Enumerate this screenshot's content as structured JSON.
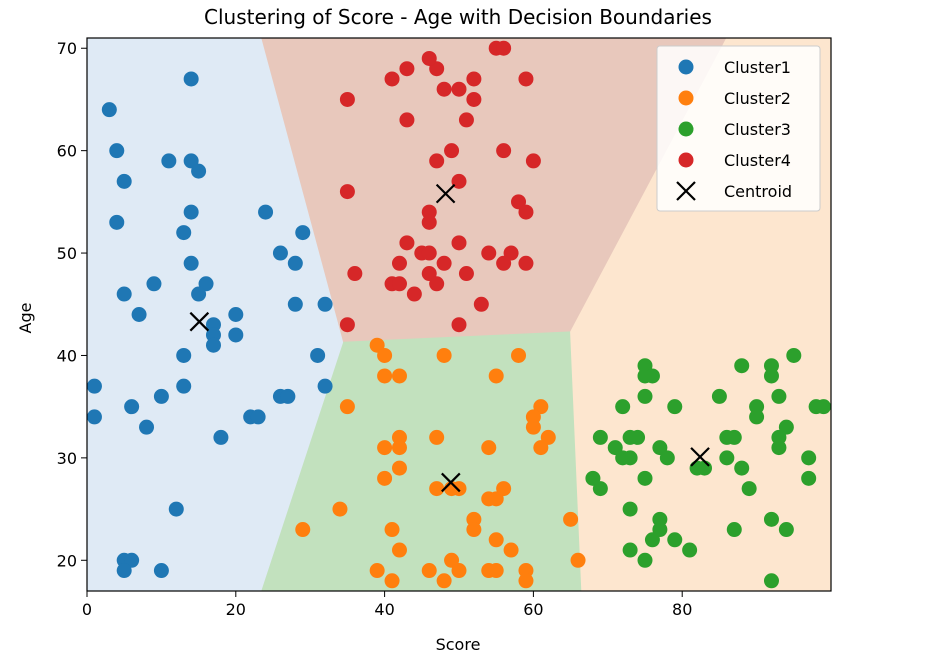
{
  "chart_data": {
    "type": "scatter",
    "title": "Clustering of Score - Age with Decision Boundaries",
    "xlabel": "Score",
    "ylabel": "Age",
    "xlim": [
      0,
      100
    ],
    "ylim": [
      17,
      71
    ],
    "xticks": [
      0,
      20,
      40,
      60,
      80
    ],
    "yticks": [
      20,
      30,
      40,
      50,
      60,
      70
    ],
    "grid": false,
    "legend_position": "top-right",
    "regions": [
      {
        "cluster": "Cluster1",
        "color": "#dfeaf5",
        "polygon": [
          [
            0,
            71
          ],
          [
            23.5,
            71
          ],
          [
            34.5,
            41.3
          ],
          [
            23.5,
            17
          ],
          [
            0,
            17
          ]
        ]
      },
      {
        "cluster": "Cluster4",
        "color": "#e8c8bc",
        "polygon": [
          [
            23.5,
            71
          ],
          [
            86,
            71
          ],
          [
            65,
            42.3
          ],
          [
            34.5,
            41.3
          ]
        ]
      },
      {
        "cluster": "Cluster2",
        "color": "#c2e1be",
        "polygon": [
          [
            34.5,
            41.3
          ],
          [
            65,
            42.3
          ],
          [
            66.5,
            17
          ],
          [
            23.5,
            17
          ]
        ]
      },
      {
        "cluster": "Cluster3",
        "color": "#fde6cf",
        "polygon": [
          [
            65,
            42.3
          ],
          [
            86,
            71
          ],
          [
            100,
            71
          ],
          [
            100,
            17
          ],
          [
            66.5,
            17
          ]
        ]
      }
    ],
    "series": [
      {
        "name": "Cluster1",
        "color": "#1f77b4",
        "points": [
          [
            14,
            67
          ],
          [
            3,
            64
          ],
          [
            4,
            60
          ],
          [
            11,
            59
          ],
          [
            14,
            59
          ],
          [
            15,
            58
          ],
          [
            5,
            57
          ],
          [
            14,
            54
          ],
          [
            24,
            54
          ],
          [
            4,
            53
          ],
          [
            13,
            52
          ],
          [
            29,
            52
          ],
          [
            14,
            49
          ],
          [
            26,
            50
          ],
          [
            28,
            49
          ],
          [
            16,
            47
          ],
          [
            9,
            47
          ],
          [
            15,
            46
          ],
          [
            5,
            46
          ],
          [
            28,
            45
          ],
          [
            32,
            45
          ],
          [
            7,
            44
          ],
          [
            20,
            44
          ],
          [
            17,
            43
          ],
          [
            17,
            42
          ],
          [
            20,
            42
          ],
          [
            17,
            41
          ],
          [
            31,
            40
          ],
          [
            13,
            40
          ],
          [
            1,
            37
          ],
          [
            13,
            37
          ],
          [
            32,
            37
          ],
          [
            10,
            36
          ],
          [
            26,
            36
          ],
          [
            27,
            36
          ],
          [
            6,
            35
          ],
          [
            1,
            34
          ],
          [
            22,
            34
          ],
          [
            23,
            34
          ],
          [
            8,
            33
          ],
          [
            18,
            32
          ],
          [
            12,
            25
          ],
          [
            5,
            20
          ],
          [
            6,
            20
          ],
          [
            5,
            19
          ],
          [
            10,
            19
          ]
        ]
      },
      {
        "name": "Cluster2",
        "color": "#ff7f0e",
        "points": [
          [
            39,
            41
          ],
          [
            40,
            40
          ],
          [
            48,
            40
          ],
          [
            58,
            40
          ],
          [
            40,
            38
          ],
          [
            42,
            38
          ],
          [
            55,
            38
          ],
          [
            35,
            35
          ],
          [
            61,
            35
          ],
          [
            60,
            34
          ],
          [
            60,
            33
          ],
          [
            47,
            32
          ],
          [
            42,
            32
          ],
          [
            62,
            32
          ],
          [
            40,
            31
          ],
          [
            42,
            31
          ],
          [
            54,
            31
          ],
          [
            61,
            31
          ],
          [
            42,
            29
          ],
          [
            40,
            28
          ],
          [
            47,
            27
          ],
          [
            49,
            27
          ],
          [
            50,
            27
          ],
          [
            56,
            27
          ],
          [
            54,
            26
          ],
          [
            55,
            26
          ],
          [
            34,
            25
          ],
          [
            52,
            24
          ],
          [
            65,
            24
          ],
          [
            29,
            23
          ],
          [
            41,
            23
          ],
          [
            52,
            23
          ],
          [
            55,
            22
          ],
          [
            42,
            21
          ],
          [
            57,
            21
          ],
          [
            66,
            20
          ],
          [
            49,
            20
          ],
          [
            50,
            19
          ],
          [
            46,
            19
          ],
          [
            39,
            19
          ],
          [
            54,
            19
          ],
          [
            55,
            19
          ],
          [
            59,
            19
          ],
          [
            41,
            18
          ],
          [
            48,
            18
          ],
          [
            59,
            18
          ]
        ]
      },
      {
        "name": "Cluster3",
        "color": "#2ca02c",
        "points": [
          [
            95,
            40
          ],
          [
            75,
            39
          ],
          [
            88,
            39
          ],
          [
            92,
            39
          ],
          [
            75,
            38
          ],
          [
            76,
            38
          ],
          [
            92,
            38
          ],
          [
            85,
            36
          ],
          [
            75,
            36
          ],
          [
            93,
            36
          ],
          [
            72,
            35
          ],
          [
            79,
            35
          ],
          [
            90,
            35
          ],
          [
            98,
            35
          ],
          [
            99,
            35
          ],
          [
            90,
            34
          ],
          [
            94,
            33
          ],
          [
            73,
            32
          ],
          [
            74,
            32
          ],
          [
            87,
            32
          ],
          [
            86,
            32
          ],
          [
            69,
            32
          ],
          [
            93,
            32
          ],
          [
            71,
            31
          ],
          [
            77,
            31
          ],
          [
            93,
            31
          ],
          [
            72,
            30
          ],
          [
            73,
            30
          ],
          [
            78,
            30
          ],
          [
            86,
            30
          ],
          [
            97,
            30
          ],
          [
            82,
            29
          ],
          [
            83,
            29
          ],
          [
            88,
            29
          ],
          [
            75,
            28
          ],
          [
            68,
            28
          ],
          [
            97,
            28
          ],
          [
            69,
            27
          ],
          [
            89,
            27
          ],
          [
            73,
            25
          ],
          [
            77,
            24
          ],
          [
            92,
            24
          ],
          [
            77,
            23
          ],
          [
            87,
            23
          ],
          [
            94,
            23
          ],
          [
            76,
            22
          ],
          [
            79,
            22
          ],
          [
            73,
            21
          ],
          [
            81,
            21
          ],
          [
            75,
            20
          ],
          [
            92,
            18
          ]
        ]
      },
      {
        "name": "Cluster4",
        "color": "#d62728",
        "points": [
          [
            55,
            70
          ],
          [
            56,
            70
          ],
          [
            47,
            68
          ],
          [
            43,
            68
          ],
          [
            46,
            69
          ],
          [
            52,
            67
          ],
          [
            59,
            67
          ],
          [
            41,
            67
          ],
          [
            48,
            66
          ],
          [
            50,
            66
          ],
          [
            52,
            65
          ],
          [
            35,
            65
          ],
          [
            43,
            63
          ],
          [
            51,
            63
          ],
          [
            49,
            60
          ],
          [
            56,
            60
          ],
          [
            47,
            59
          ],
          [
            60,
            59
          ],
          [
            50,
            57
          ],
          [
            35,
            56
          ],
          [
            58,
            55
          ],
          [
            59,
            54
          ],
          [
            46,
            54
          ],
          [
            46,
            53
          ],
          [
            43,
            51
          ],
          [
            50,
            51
          ],
          [
            45,
            50
          ],
          [
            46,
            50
          ],
          [
            54,
            50
          ],
          [
            57,
            50
          ],
          [
            59,
            49
          ],
          [
            42,
            49
          ],
          [
            48,
            49
          ],
          [
            51,
            48
          ],
          [
            56,
            49
          ],
          [
            36,
            48
          ],
          [
            46,
            48
          ],
          [
            41,
            47
          ],
          [
            42,
            47
          ],
          [
            47,
            47
          ],
          [
            44,
            46
          ],
          [
            53,
            45
          ],
          [
            35,
            43
          ],
          [
            50,
            43
          ]
        ]
      },
      {
        "name": "Centroid",
        "color": "#000000",
        "marker": "x",
        "points": [
          [
            15.1,
            43.3
          ],
          [
            48.9,
            27.6
          ],
          [
            82.4,
            30.1
          ],
          [
            48.2,
            55.8
          ]
        ]
      }
    ]
  }
}
